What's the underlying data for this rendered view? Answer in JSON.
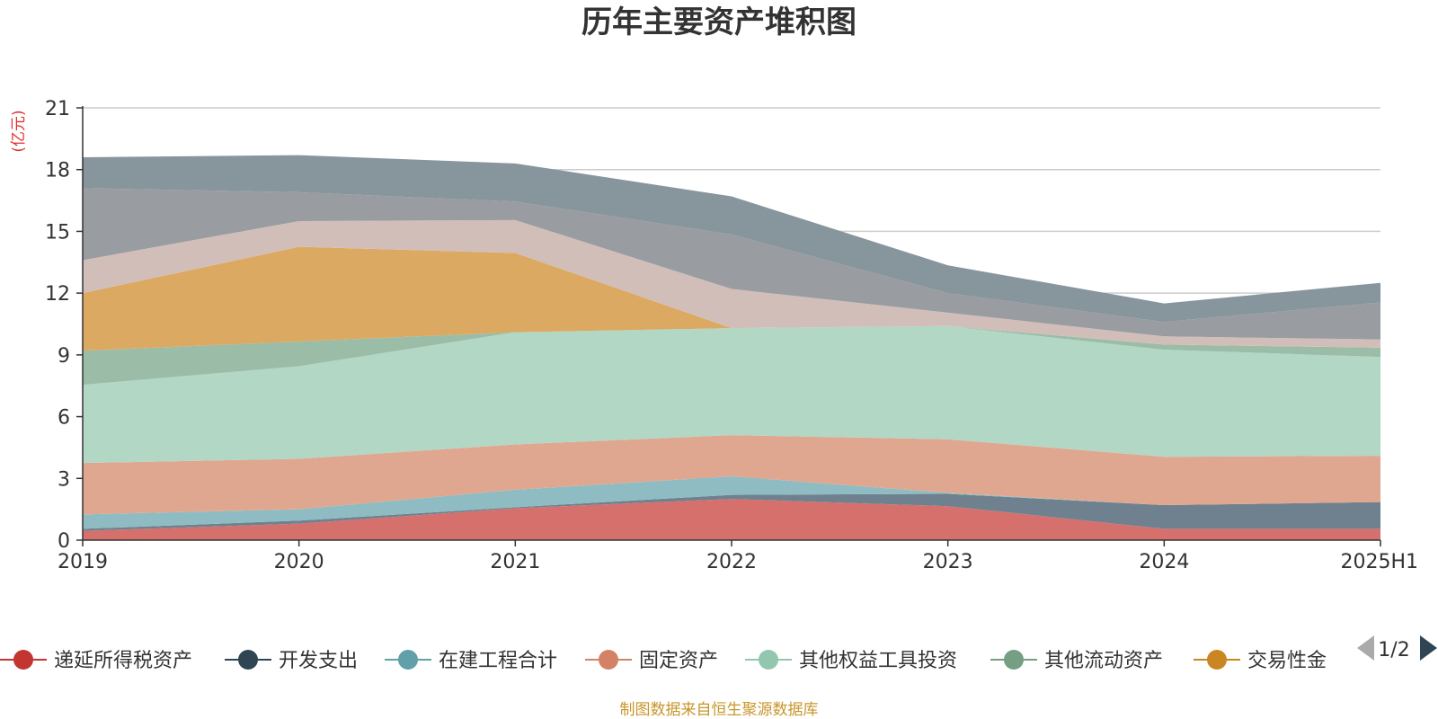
{
  "chart_data": {
    "type": "area",
    "title": "历年主要资产堆积图",
    "unit": "(亿元)",
    "categories": [
      "2019",
      "2020",
      "2021",
      "2022",
      "2023",
      "2024",
      "2025H1"
    ],
    "ylim": [
      0,
      21
    ],
    "yticks": [
      0,
      3,
      6,
      9,
      12,
      15,
      18,
      21
    ],
    "grid": true,
    "stacked": true,
    "legend_position": "bottom",
    "legend_page": "1/2",
    "series": [
      {
        "name": "递延所得税资产",
        "color": "#d5706c",
        "values": [
          0.45,
          0.8,
          1.55,
          2.0,
          1.65,
          0.55,
          0.55
        ]
      },
      {
        "name": "开发支出",
        "color": "#6f818e",
        "values": [
          0.1,
          0.15,
          0.05,
          0.2,
          0.6,
          1.15,
          1.3
        ]
      },
      {
        "name": "在建工程合计",
        "color": "#8fbcc2",
        "values": [
          0.7,
          0.55,
          0.85,
          0.9,
          0.05,
          0.0,
          0.0
        ]
      },
      {
        "name": "固定资产",
        "color": "#e0a790",
        "values": [
          2.5,
          2.45,
          2.2,
          2.0,
          2.6,
          2.35,
          2.25
        ]
      },
      {
        "name": "其他权益工具投资",
        "color": "#b2d7c5",
        "values": [
          3.8,
          4.5,
          5.45,
          5.2,
          5.5,
          5.2,
          4.8
        ]
      },
      {
        "name": "其他流动资产",
        "color": "#9bbca7",
        "values": [
          1.65,
          1.2,
          0.0,
          0.0,
          0.0,
          0.25,
          0.45
        ]
      },
      {
        "name": "交易性金",
        "color": "#dba961",
        "values": [
          2.8,
          4.6,
          3.85,
          0.0,
          0.0,
          0.0,
          0.0
        ]
      },
      {
        "name": "",
        "color": "#d2beb9",
        "values": [
          1.6,
          1.25,
          1.6,
          1.9,
          0.65,
          0.4,
          0.4
        ]
      },
      {
        "name": "",
        "color": "#999ca0",
        "values": [
          3.5,
          1.4,
          0.9,
          2.65,
          0.95,
          0.7,
          1.8
        ]
      },
      {
        "name": "",
        "color": "#87959c",
        "values": [
          1.5,
          1.8,
          1.85,
          1.85,
          1.35,
          0.9,
          0.95
        ]
      }
    ]
  },
  "source_note": "制图数据来自恒生聚源数据库",
  "colors": {
    "axis": "#333333",
    "grid": "#cccccc",
    "unit": "#e03030",
    "source": "#c8962a",
    "legend_line": {
      "递延所得税资产": "#c23531",
      "开发支出": "#2f4554",
      "在建工程合计": "#61a0a8",
      "固定资产": "#d48265",
      "其他权益工具投资": "#91c7ae",
      "其他流动资产": "#749f83",
      "交易性金": "#ca8622"
    },
    "pager_prev": "#aaaaaa",
    "pager_next": "#2f4554"
  }
}
